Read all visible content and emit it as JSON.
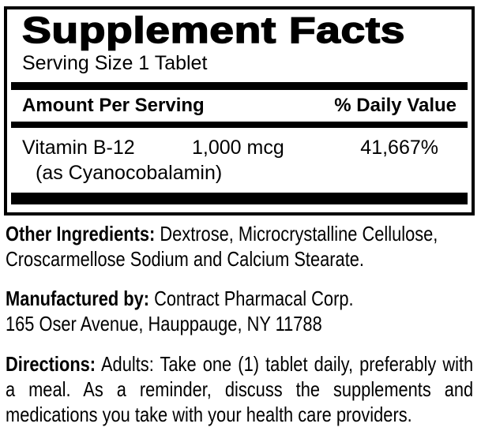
{
  "colors": {
    "text": "#000000",
    "background": "#ffffff"
  },
  "panel": {
    "title": "Supplement Facts",
    "serving_size": "Serving Size 1 Tablet",
    "header": {
      "amount": "Amount Per Serving",
      "daily_value": "% Daily Value"
    },
    "nutrients": [
      {
        "name": "Vitamin B-12",
        "name_line2": "(as Cyanocobalamin)",
        "amount": "1,000 mcg",
        "daily_value": "41,667%"
      }
    ]
  },
  "other_ingredients": {
    "label": "Other Ingredients:",
    "line1_rest": " Dextrose, Microcrystalline Cellulose,",
    "line2": "Croscarmellose Sodium and Calcium Stearate."
  },
  "manufactured_by": {
    "label": "Manufactured by:",
    "line1_rest": " Contract Pharmacal Corp.",
    "line2": "165 Oser Avenue, Hauppauge, NY 11788"
  },
  "directions": {
    "label": "Directions:",
    "line1_rest": " Adults: Take one (1) tablet daily, preferably with",
    "line2": "a meal. As a reminder, discuss the supplements and",
    "line3": "medications you take with your health care providers."
  }
}
